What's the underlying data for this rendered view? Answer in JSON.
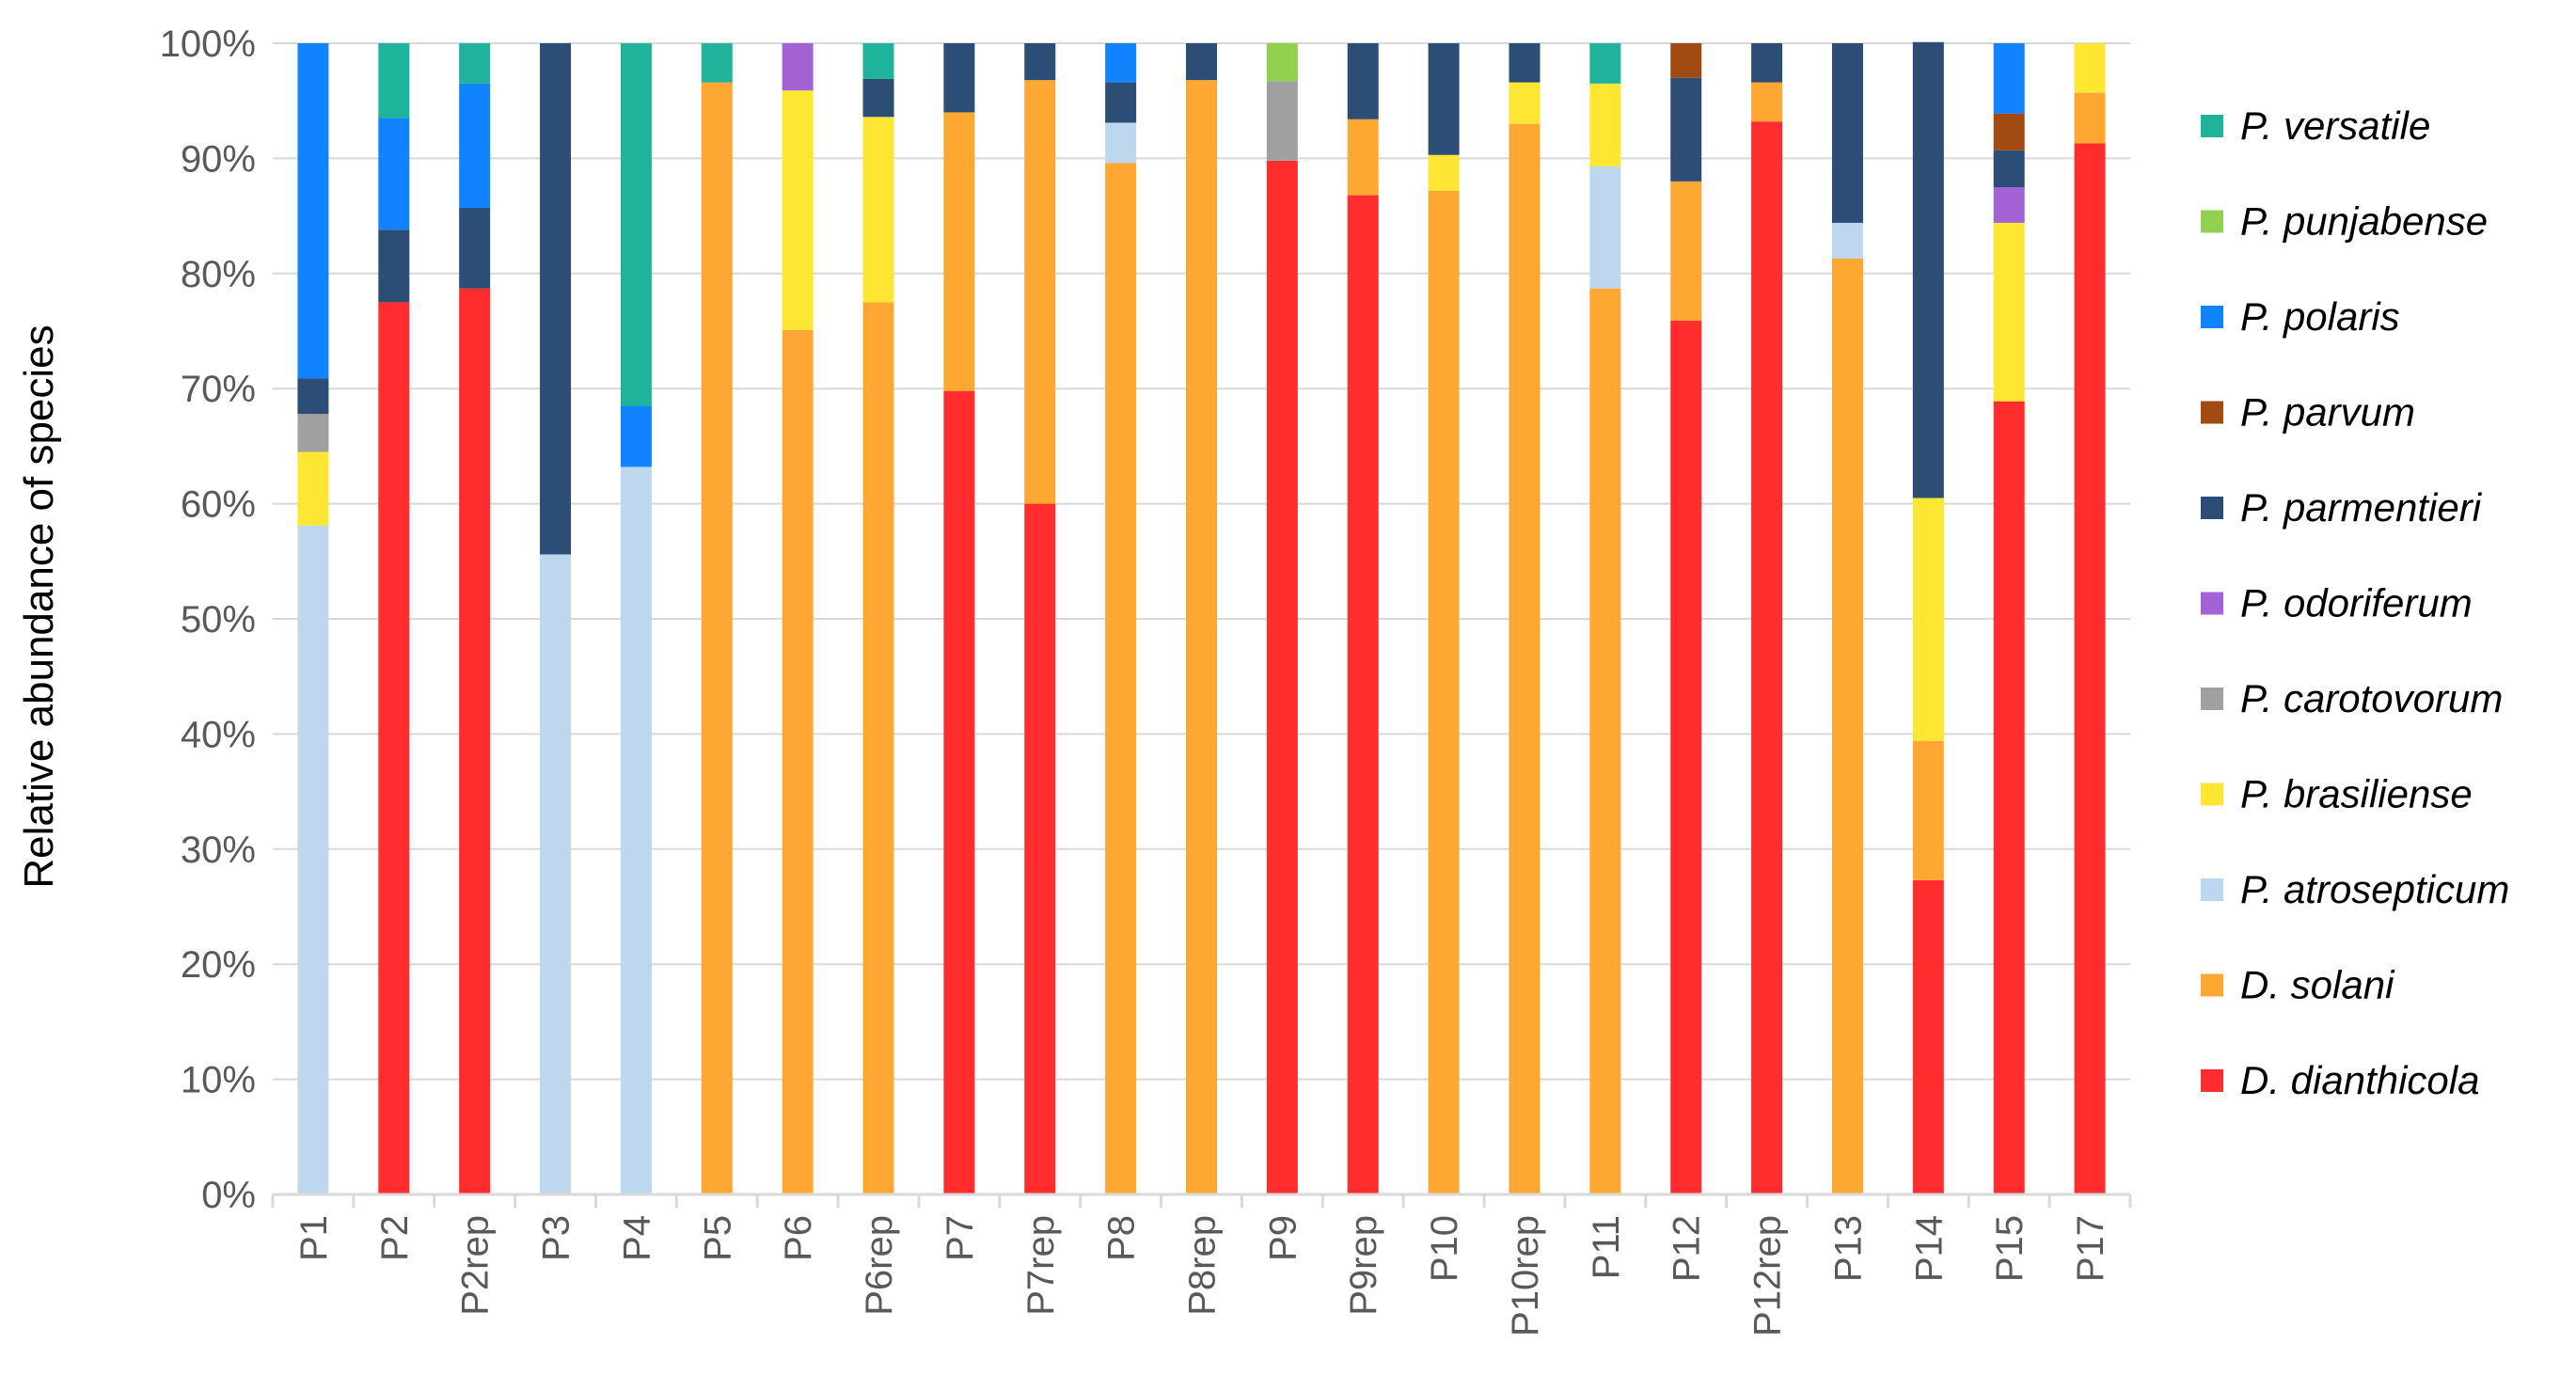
{
  "chart_data": {
    "type": "bar",
    "stacked": true,
    "title": "",
    "xlabel": "",
    "ylabel": "Relative abundance  of species",
    "ylim": [
      0,
      100
    ],
    "y_tick_labels": [
      "0%",
      "10%",
      "20%",
      "30%",
      "40%",
      "50%",
      "60%",
      "70%",
      "80%",
      "90%",
      "100%"
    ],
    "grid": true,
    "legend_position": "right",
    "categories": [
      "P1",
      "P2",
      "P2rep",
      "P3",
      "P4",
      "P5",
      "P6",
      "P6rep",
      "P7",
      "P7rep",
      "P8",
      "P8rep",
      "P9",
      "P9rep",
      "P10",
      "P10rep",
      "P11",
      "P12",
      "P12rep",
      "P13",
      "P14",
      "P15",
      "P17"
    ],
    "series": [
      {
        "name": "D. dianthicola",
        "color": "#FF2D2D",
        "values": [
          0,
          77.5,
          78.7,
          0,
          0,
          0,
          0,
          0,
          69.8,
          60.0,
          0,
          0,
          89.8,
          86.8,
          0,
          0,
          0,
          75.9,
          93.2,
          0,
          27.3,
          68.9,
          91.3
        ]
      },
      {
        "name": "D. solani",
        "color": "#FFA733",
        "values": [
          0,
          0,
          0,
          0,
          0,
          96.6,
          75.1,
          77.5,
          24.2,
          36.8,
          89.6,
          96.8,
          0,
          6.6,
          87.2,
          93.0,
          78.7,
          12.1,
          3.4,
          81.3,
          12.1,
          0,
          4.4
        ]
      },
      {
        "name": "P. atrosepticum",
        "color": "#BDD7EE",
        "values": [
          58.1,
          0,
          0,
          55.6,
          63.2,
          0,
          0,
          0,
          0,
          0,
          3.5,
          0,
          0,
          0,
          0,
          0,
          10.6,
          0,
          0,
          3.1,
          0,
          0,
          0
        ]
      },
      {
        "name": "P. brasiliense",
        "color": "#FFE633",
        "values": [
          6.4,
          0,
          0,
          0,
          0,
          0,
          20.8,
          16.1,
          0,
          0,
          0,
          0,
          0,
          0,
          3.1,
          3.6,
          7.2,
          0,
          0,
          0,
          21.1,
          15.5,
          4.3
        ]
      },
      {
        "name": "P. carotovorum",
        "color": "#A0A0A0",
        "values": [
          3.3,
          0,
          0,
          0,
          0,
          0,
          0,
          0,
          0,
          0,
          0,
          0,
          6.9,
          0,
          0,
          0,
          0,
          0,
          0,
          0,
          0,
          0,
          0
        ]
      },
      {
        "name": "P. odoriferum",
        "color": "#A363D4",
        "values": [
          0,
          0,
          0,
          0,
          0,
          0,
          4.1,
          0,
          0,
          0,
          0,
          0,
          0,
          0,
          0,
          0,
          0,
          0,
          0,
          0,
          0,
          3.1,
          0
        ]
      },
      {
        "name": "P. parmentieri",
        "color": "#2C4D76",
        "values": [
          3.1,
          6.3,
          7.0,
          44.4,
          0,
          0,
          0,
          3.3,
          6.0,
          3.2,
          3.5,
          3.2,
          0,
          6.6,
          9.7,
          3.4,
          0,
          9.0,
          3.4,
          15.6,
          39.6,
          3.2,
          0
        ]
      },
      {
        "name": "P. parvum",
        "color": "#A14A12",
        "values": [
          0,
          0,
          0,
          0,
          0,
          0,
          0,
          0,
          0,
          0,
          0,
          0,
          0,
          0,
          0,
          0,
          0,
          3.0,
          0,
          0,
          0,
          3.2,
          0
        ]
      },
      {
        "name": "P. polaris",
        "color": "#1283FF",
        "values": [
          29.1,
          9.7,
          10.8,
          0,
          5.3,
          0,
          0,
          0,
          0,
          0,
          3.4,
          0,
          0,
          0,
          0,
          0,
          0,
          0,
          0,
          0,
          0,
          6.1,
          0
        ]
      },
      {
        "name": "P. punjabense",
        "color": "#92D050",
        "values": [
          0,
          0,
          0,
          0,
          0,
          0,
          0,
          0,
          0,
          0,
          0,
          0,
          3.3,
          0,
          0,
          0,
          0,
          0,
          0,
          0,
          0,
          0,
          0
        ]
      },
      {
        "name": "P. versatile",
        "color": "#1FB39C",
        "values": [
          0,
          6.5,
          3.5,
          0,
          31.5,
          3.4,
          0,
          3.1,
          0,
          0,
          0,
          0,
          0,
          0,
          0,
          0,
          3.5,
          0,
          0,
          0,
          0,
          0,
          0
        ]
      }
    ],
    "legend_order": [
      "P. versatile",
      "P. punjabense",
      "P. polaris",
      "P. parvum",
      "P. parmentieri",
      "P. odoriferum",
      "P. carotovorum",
      "P. brasiliense",
      "P. atrosepticum",
      "D. solani",
      "D. dianthicola"
    ],
    "colors": {
      "axis": "#D9D9D9",
      "grid": "#D9D9D9",
      "tick_text": "#595959"
    }
  }
}
